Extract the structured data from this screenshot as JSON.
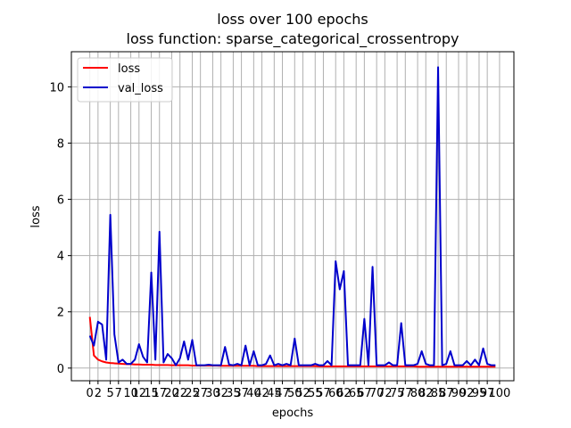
{
  "chart_data": {
    "type": "line",
    "title": "loss over 100 epochs",
    "subtitle": "loss function: sparse_categorical_crossentropy",
    "xlabel": "epochs",
    "ylabel": "loss",
    "xlim": [
      -4.5,
      103.5
    ],
    "ylim": [
      -0.45,
      11.25
    ],
    "xticks": [
      0,
      2,
      5,
      7,
      10,
      12,
      15,
      17,
      20,
      22,
      25,
      27,
      30,
      32,
      35,
      37,
      40,
      42,
      45,
      47,
      50,
      52,
      55,
      57,
      60,
      62,
      65,
      67,
      70,
      72,
      75,
      77,
      80,
      82,
      85,
      87,
      90,
      92,
      95,
      97,
      100
    ],
    "xtick_labels": [
      "0",
      "2",
      "5",
      "7",
      "10",
      "12",
      "15",
      "17",
      "20",
      "22",
      "25",
      "27",
      "30",
      "32",
      "35",
      "37",
      "40",
      "42",
      "45",
      "47",
      "50",
      "52",
      "55",
      "57",
      "60",
      "62",
      "65",
      "67",
      "70",
      "72",
      "75",
      "77",
      "80",
      "82",
      "85",
      "87",
      "90",
      "92",
      "95",
      "97",
      "100"
    ],
    "yticks": [
      0,
      2,
      4,
      6,
      8,
      10
    ],
    "ytick_labels": [
      "0",
      "2",
      "4",
      "6",
      "8",
      "10"
    ],
    "grid": true,
    "legend_position": "top-left",
    "series": [
      {
        "name": "loss",
        "color": "#ff0000",
        "x": [
          0,
          1,
          2,
          3,
          4,
          5,
          6,
          7,
          8,
          9,
          10,
          11,
          12,
          13,
          14,
          15,
          16,
          17,
          18,
          19,
          20,
          21,
          22,
          23,
          24,
          25,
          26,
          27,
          28,
          29,
          30,
          31,
          32,
          33,
          34,
          35,
          36,
          37,
          38,
          39,
          40,
          41,
          42,
          43,
          44,
          45,
          46,
          47,
          48,
          49,
          50,
          51,
          52,
          53,
          54,
          55,
          56,
          57,
          58,
          59,
          60,
          61,
          62,
          63,
          64,
          65,
          66,
          67,
          68,
          69,
          70,
          71,
          72,
          73,
          74,
          75,
          76,
          77,
          78,
          79,
          80,
          81,
          82,
          83,
          84,
          85,
          86,
          87,
          88,
          89,
          90,
          91,
          92,
          93,
          94,
          95,
          96,
          97,
          98,
          99
        ],
        "y": [
          1.82,
          0.45,
          0.3,
          0.24,
          0.2,
          0.18,
          0.17,
          0.16,
          0.15,
          0.14,
          0.14,
          0.13,
          0.13,
          0.12,
          0.12,
          0.12,
          0.11,
          0.11,
          0.11,
          0.11,
          0.1,
          0.1,
          0.1,
          0.1,
          0.1,
          0.09,
          0.09,
          0.09,
          0.09,
          0.09,
          0.09,
          0.09,
          0.08,
          0.08,
          0.08,
          0.08,
          0.08,
          0.08,
          0.08,
          0.08,
          0.08,
          0.07,
          0.07,
          0.07,
          0.07,
          0.07,
          0.07,
          0.07,
          0.07,
          0.07,
          0.07,
          0.07,
          0.07,
          0.07,
          0.07,
          0.07,
          0.06,
          0.06,
          0.06,
          0.06,
          0.06,
          0.06,
          0.06,
          0.06,
          0.06,
          0.06,
          0.06,
          0.06,
          0.06,
          0.06,
          0.06,
          0.06,
          0.06,
          0.06,
          0.06,
          0.06,
          0.06,
          0.06,
          0.06,
          0.06,
          0.05,
          0.05,
          0.05,
          0.05,
          0.05,
          0.05,
          0.05,
          0.05,
          0.05,
          0.05,
          0.05,
          0.05,
          0.05,
          0.05,
          0.05,
          0.05,
          0.05,
          0.05,
          0.05,
          0.05
        ]
      },
      {
        "name": "val_loss",
        "color": "#0000cc",
        "x": [
          0,
          1,
          2,
          3,
          4,
          5,
          6,
          7,
          8,
          9,
          10,
          11,
          12,
          13,
          14,
          15,
          16,
          17,
          18,
          19,
          20,
          21,
          22,
          23,
          24,
          25,
          26,
          27,
          28,
          29,
          30,
          31,
          32,
          33,
          34,
          35,
          36,
          37,
          38,
          39,
          40,
          41,
          42,
          43,
          44,
          45,
          46,
          47,
          48,
          49,
          50,
          51,
          52,
          53,
          54,
          55,
          56,
          57,
          58,
          59,
          60,
          61,
          62,
          63,
          64,
          65,
          66,
          67,
          68,
          69,
          70,
          71,
          72,
          73,
          74,
          75,
          76,
          77,
          78,
          79,
          80,
          81,
          82,
          83,
          84,
          85,
          86,
          87,
          88,
          89,
          90,
          91,
          92,
          93,
          94,
          95,
          96,
          97,
          98,
          99
        ],
        "y": [
          1.15,
          0.8,
          1.65,
          1.55,
          0.3,
          5.45,
          1.2,
          0.2,
          0.3,
          0.15,
          0.15,
          0.3,
          0.85,
          0.4,
          0.2,
          3.4,
          0.3,
          4.85,
          0.2,
          0.5,
          0.35,
          0.1,
          0.35,
          0.95,
          0.3,
          1.0,
          0.1,
          0.1,
          0.1,
          0.12,
          0.1,
          0.1,
          0.1,
          0.75,
          0.12,
          0.1,
          0.15,
          0.1,
          0.8,
          0.1,
          0.6,
          0.1,
          0.1,
          0.15,
          0.45,
          0.1,
          0.15,
          0.1,
          0.15,
          0.1,
          1.05,
          0.1,
          0.1,
          0.1,
          0.1,
          0.15,
          0.1,
          0.1,
          0.25,
          0.1,
          3.8,
          2.8,
          3.45,
          0.1,
          0.1,
          0.1,
          0.1,
          1.75,
          0.1,
          3.6,
          0.1,
          0.1,
          0.1,
          0.2,
          0.1,
          0.1,
          1.6,
          0.1,
          0.1,
          0.1,
          0.15,
          0.6,
          0.15,
          0.1,
          0.1,
          10.7,
          0.1,
          0.15,
          0.6,
          0.1,
          0.1,
          0.1,
          0.25,
          0.1,
          0.3,
          0.1,
          0.7,
          0.15,
          0.1,
          0.1
        ]
      }
    ]
  }
}
